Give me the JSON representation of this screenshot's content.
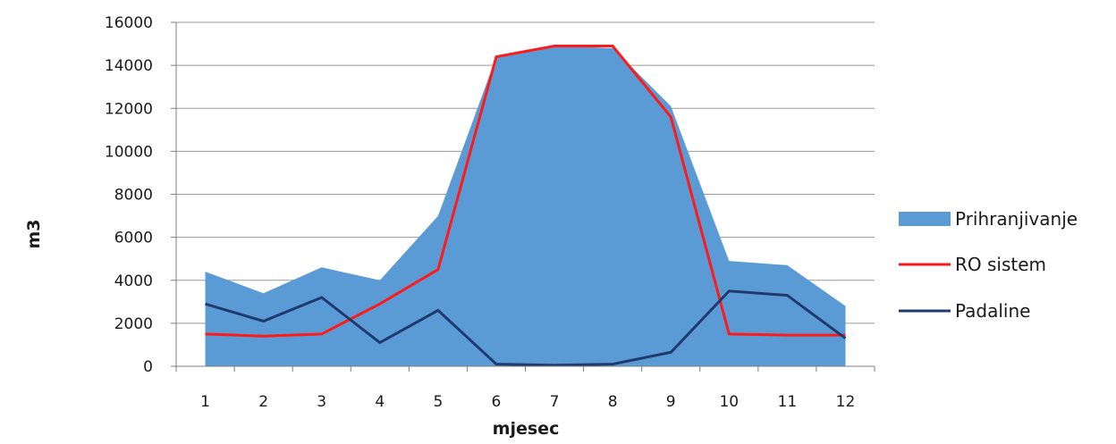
{
  "chart_data": {
    "type": "area",
    "title": "",
    "xlabel": "mjesec",
    "ylabel": "m3",
    "x": [
      1,
      2,
      3,
      4,
      5,
      6,
      7,
      8,
      9,
      10,
      11,
      12
    ],
    "ylim": [
      0,
      16000
    ],
    "yticks": [
      0,
      2000,
      4000,
      6000,
      8000,
      10000,
      12000,
      14000,
      16000
    ],
    "grid": "horizontal",
    "legend_position": "right",
    "series": [
      {
        "name": "Prihranjivanje",
        "kind": "area",
        "color": "#5b9bd5",
        "values": [
          4400,
          3400,
          4600,
          4000,
          7000,
          14400,
          14900,
          14800,
          12100,
          4900,
          4700,
          2800
        ]
      },
      {
        "name": "RO sistem",
        "kind": "line",
        "color": "#ff1a1a",
        "values": [
          1500,
          1400,
          1500,
          2900,
          4500,
          14400,
          14900,
          14900,
          11600,
          1500,
          1450,
          1450
        ]
      },
      {
        "name": "Padaline",
        "kind": "line",
        "color": "#1f3a6e",
        "values": [
          2900,
          2100,
          3200,
          1100,
          2600,
          100,
          50,
          100,
          650,
          3500,
          3300,
          1300
        ]
      }
    ]
  }
}
